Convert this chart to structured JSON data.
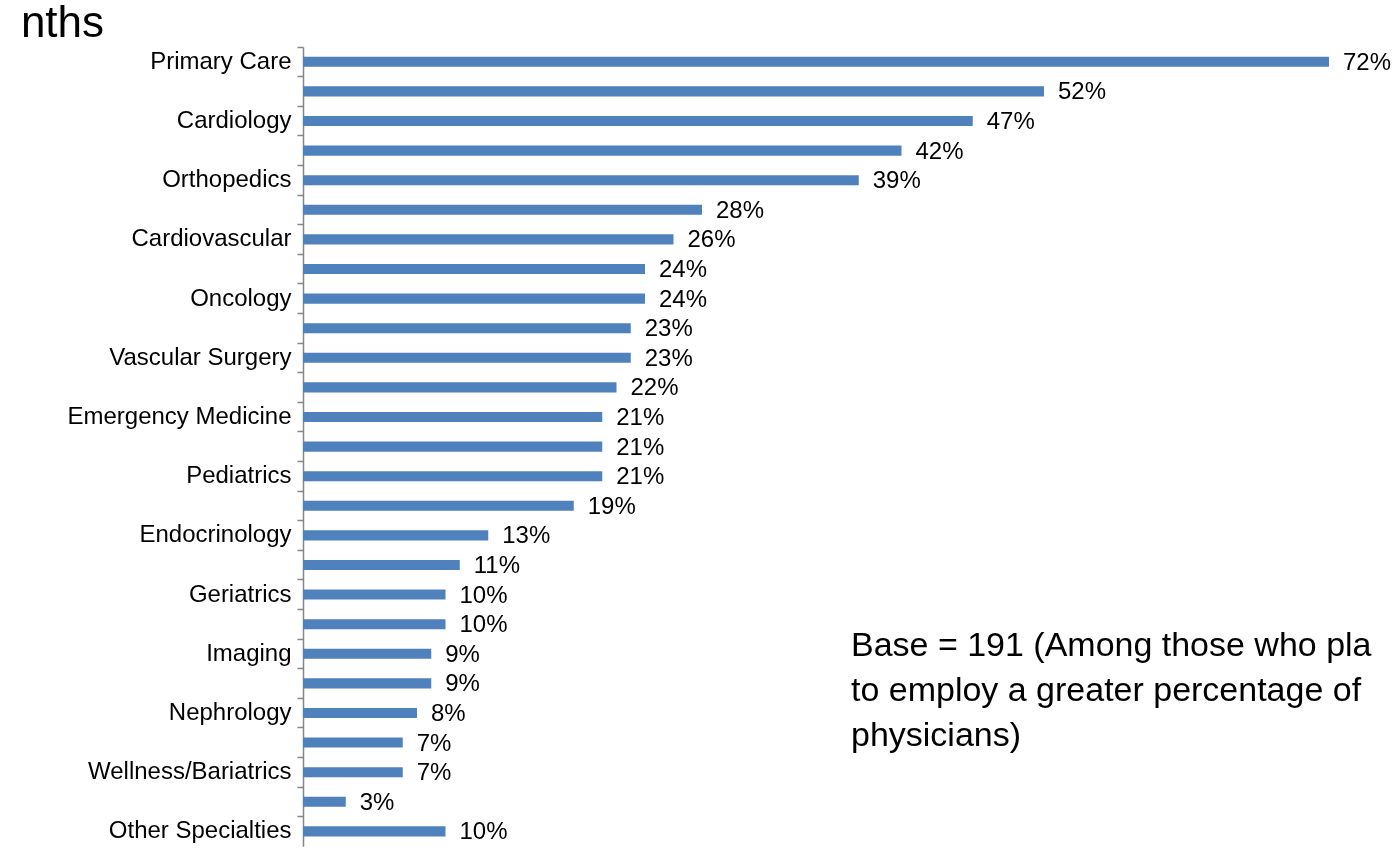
{
  "chart_data": {
    "type": "bar",
    "orientation": "horizontal",
    "title": "nths",
    "categories": [
      "Primary Care",
      null,
      "Cardiology",
      null,
      "Orthopedics",
      null,
      "Cardiovascular",
      null,
      "Oncology",
      null,
      "Vascular Surgery",
      null,
      "Emergency Medicine",
      null,
      "Pediatrics",
      null,
      "Endocrinology",
      null,
      "Geriatrics",
      null,
      "Imaging",
      null,
      "Nephrology",
      null,
      "Wellness/Bariatrics",
      null,
      "Other Specialties"
    ],
    "values": [
      72,
      52,
      47,
      42,
      39,
      28,
      26,
      24,
      24,
      23,
      23,
      22,
      21,
      21,
      21,
      19,
      13,
      11,
      10,
      10,
      9,
      9,
      8,
      7,
      7,
      3,
      10
    ],
    "value_labels": [
      "72%",
      "52%",
      "47%",
      "42%",
      "39%",
      "28%",
      "26%",
      "24%",
      "24%",
      "23%",
      "23%",
      "22%",
      "21%",
      "21%",
      "21%",
      "19%",
      "13%",
      "11%",
      "10%",
      "10%",
      "9%",
      "9%",
      "8%",
      "7%",
      "7%",
      "3%",
      "10%"
    ],
    "color": "#4f81bd",
    "annotations": [
      "Base = 191 (Among those who pla\nto employ a greater percentage of\nphysicians)"
    ]
  }
}
